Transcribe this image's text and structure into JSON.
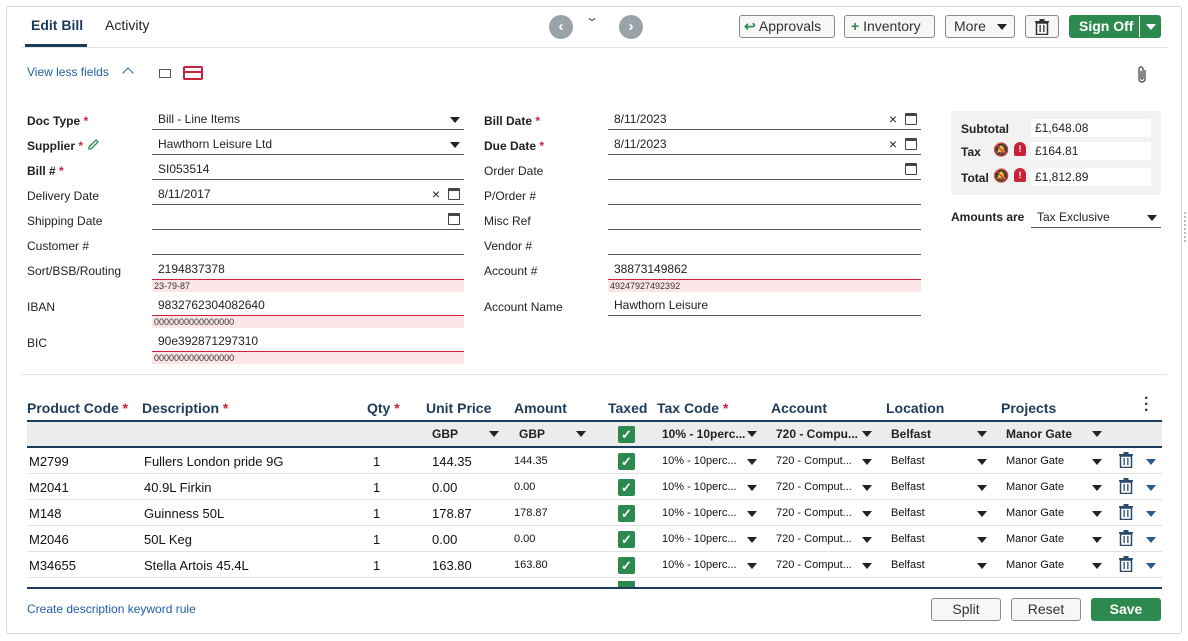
{
  "tabs": [
    {
      "label": "Edit Bill",
      "active": true
    },
    {
      "label": "Activity",
      "active": false
    }
  ],
  "toolbar": {
    "approvals": "Approvals",
    "inventory": "Inventory",
    "more": "More",
    "sign_off": "Sign Off"
  },
  "view_less_fields": "View less fields",
  "form": {
    "doc_type": {
      "label": "Doc Type",
      "value": "Bill - Line Items"
    },
    "supplier": {
      "label": "Supplier",
      "value": "Hawthorn Leisure Ltd"
    },
    "bill_no": {
      "label": "Bill #",
      "value": "SI053514"
    },
    "delivery_date": {
      "label": "Delivery Date",
      "value": "8/11/2017"
    },
    "shipping_date": {
      "label": "Shipping Date",
      "value": ""
    },
    "customer_no": {
      "label": "Customer #",
      "value": ""
    },
    "sort_code": {
      "label": "Sort/BSB/Routing",
      "value": "2194837378",
      "hint": "23-79-87"
    },
    "iban": {
      "label": "IBAN",
      "value": "9832762304082640",
      "hint": "0000000000000000"
    },
    "bic": {
      "label": "BIC",
      "value": "90e392871297310",
      "hint": "0000000000000000"
    },
    "bill_date": {
      "label": "Bill Date",
      "value": "8/11/2023"
    },
    "due_date": {
      "label": "Due Date",
      "value": "8/11/2023"
    },
    "order_date": {
      "label": "Order Date",
      "value": ""
    },
    "po_no": {
      "label": "P/Order #",
      "value": ""
    },
    "misc_ref": {
      "label": "Misc Ref",
      "value": ""
    },
    "vendor_no": {
      "label": "Vendor #",
      "value": ""
    },
    "account_no": {
      "label": "Account #",
      "value": "38873149862",
      "hint": "49247927492392"
    },
    "account_name": {
      "label": "Account Name",
      "value": "Hawthorn Leisure"
    }
  },
  "totals": {
    "subtotal_label": "Subtotal",
    "subtotal": "£1,648.08",
    "tax_label": "Tax",
    "tax": "£164.81",
    "total_label": "Total",
    "total": "£1,812.89",
    "amounts_are_label": "Amounts are",
    "amounts_are": "Tax Exclusive"
  },
  "grid": {
    "headers": {
      "product_code": "Product Code",
      "description": "Description",
      "qty": "Qty",
      "unit_price": "Unit Price",
      "amount": "Amount",
      "taxed": "Taxed",
      "tax_code": "Tax Code",
      "account": "Account",
      "location": "Location",
      "projects": "Projects"
    },
    "filters": {
      "unit_price": "GBP",
      "amount": "GBP",
      "tax_code": "10% - 10perc...",
      "account": "720 - Compu...",
      "location": "Belfast",
      "projects": "Manor Gate"
    },
    "rows": [
      {
        "code": "M2799",
        "desc": "Fullers London pride 9G",
        "qty": "1",
        "price": "144.35",
        "amount": "144.35",
        "tax_code": "10% - 10perc...",
        "account": "720 - Comput...",
        "location": "Belfast",
        "project": "Manor Gate"
      },
      {
        "code": "M2041",
        "desc": "40.9L Firkin",
        "qty": "1",
        "price": "0.00",
        "amount": "0.00",
        "tax_code": "10% - 10perc...",
        "account": "720 - Comput...",
        "location": "Belfast",
        "project": "Manor Gate"
      },
      {
        "code": "M148",
        "desc": "Guinness  50L",
        "qty": "1",
        "price": "178.87",
        "amount": "178.87",
        "tax_code": "10% - 10perc...",
        "account": "720 - Comput...",
        "location": "Belfast",
        "project": "Manor Gate"
      },
      {
        "code": "M2046",
        "desc": "50L Keg",
        "qty": "1",
        "price": "0.00",
        "amount": "0.00",
        "tax_code": "10% - 10perc...",
        "account": "720 - Comput...",
        "location": "Belfast",
        "project": "Manor Gate"
      },
      {
        "code": "M34655",
        "desc": "Stella Artois  45.4L",
        "qty": "1",
        "price": "163.80",
        "amount": "163.80",
        "tax_code": "10% - 10perc...",
        "account": "720 - Comput...",
        "location": "Belfast",
        "project": "Manor Gate"
      }
    ]
  },
  "footer": {
    "keyword_rule": "Create description keyword rule",
    "split": "Split",
    "reset": "Reset",
    "save": "Save"
  },
  "colors": {
    "accent_navy": "#1d3b5c",
    "green": "#2d8a4e",
    "required_red": "#c9213a",
    "link_blue": "#1f5ea8"
  }
}
